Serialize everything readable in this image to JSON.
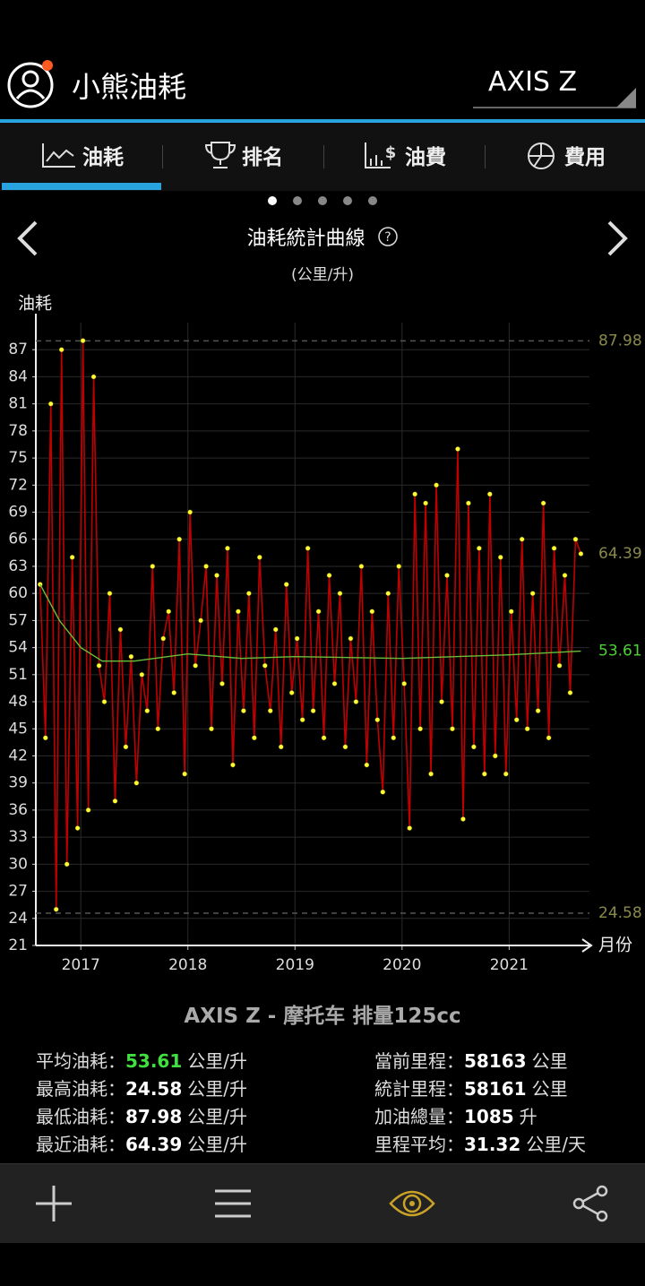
{
  "header": {
    "app_title": "小熊油耗",
    "vehicle": "AXIS Z"
  },
  "tabs": [
    "油耗",
    "排名",
    "油費",
    "費用"
  ],
  "chart_data": {
    "type": "line",
    "title": "油耗統計曲線",
    "subtitle": "(公里/升)",
    "y_label": "油耗",
    "x_label": "月份",
    "xlim": [
      2016.58,
      2021.75
    ],
    "xticks": [
      2017,
      2018,
      2019,
      2020,
      2021
    ],
    "ylim": [
      21,
      90
    ],
    "yticks": [
      21,
      24,
      27,
      30,
      33,
      36,
      39,
      42,
      45,
      48,
      51,
      54,
      57,
      60,
      63,
      66,
      69,
      72,
      75,
      78,
      81,
      84,
      87
    ],
    "grid": true,
    "series": [
      {
        "name": "油耗",
        "color": "#c00000",
        "marker_color": "#ffff33",
        "x": [
          2016.62,
          2016.67,
          2016.72,
          2016.77,
          2016.82,
          2016.87,
          2016.92,
          2016.97,
          2017.02,
          2017.07,
          2017.12,
          2017.17,
          2017.22,
          2017.27,
          2017.32,
          2017.37,
          2017.42,
          2017.47,
          2017.52,
          2017.57,
          2017.62,
          2017.67,
          2017.72,
          2017.77,
          2017.82,
          2017.87,
          2017.92,
          2017.97,
          2018.02,
          2018.07,
          2018.12,
          2018.17,
          2018.22,
          2018.27,
          2018.32,
          2018.37,
          2018.42,
          2018.47,
          2018.52,
          2018.57,
          2018.62,
          2018.67,
          2018.72,
          2018.77,
          2018.82,
          2018.87,
          2018.92,
          2018.97,
          2019.02,
          2019.07,
          2019.12,
          2019.17,
          2019.22,
          2019.27,
          2019.32,
          2019.37,
          2019.42,
          2019.47,
          2019.52,
          2019.57,
          2019.62,
          2019.67,
          2019.72,
          2019.77,
          2019.82,
          2019.87,
          2019.92,
          2019.97,
          2020.02,
          2020.07,
          2020.12,
          2020.17,
          2020.22,
          2020.27,
          2020.32,
          2020.37,
          2020.42,
          2020.47,
          2020.52,
          2020.57,
          2020.62,
          2020.67,
          2020.72,
          2020.77,
          2020.82,
          2020.87,
          2020.92,
          2020.97,
          2021.02,
          2021.07,
          2021.12,
          2021.17,
          2021.22,
          2021.27,
          2021.32,
          2021.37,
          2021.42,
          2021.47,
          2021.52,
          2021.57,
          2021.62,
          2021.67
        ],
        "values": [
          61,
          44,
          81,
          25,
          87,
          30,
          64,
          34,
          88,
          36,
          84,
          52,
          48,
          60,
          37,
          56,
          43,
          53,
          39,
          51,
          47,
          63,
          45,
          55,
          58,
          49,
          66,
          40,
          69,
          52,
          57,
          63,
          45,
          62,
          50,
          65,
          41,
          58,
          47,
          60,
          44,
          64,
          52,
          47,
          56,
          43,
          61,
          49,
          55,
          46,
          65,
          47,
          58,
          44,
          62,
          50,
          60,
          43,
          55,
          48,
          63,
          41,
          58,
          46,
          38,
          60,
          44,
          63,
          50,
          34,
          71,
          45,
          70,
          40,
          72,
          48,
          62,
          45,
          76,
          35,
          70,
          43,
          65,
          40,
          71,
          42,
          64,
          40,
          58,
          46,
          66,
          45,
          60,
          47,
          70,
          44,
          65,
          52,
          62,
          49,
          66,
          64.39
        ]
      },
      {
        "name": "平均",
        "color": "#6abf3a",
        "x": [
          2016.62,
          2016.8,
          2017.0,
          2017.2,
          2017.5,
          2018.0,
          2018.5,
          2019.0,
          2020.0,
          2021.0,
          2021.67
        ],
        "values": [
          61,
          57,
          54,
          52.5,
          52.5,
          53.3,
          52.8,
          53,
          52.8,
          53.2,
          53.61
        ]
      }
    ],
    "reference_lines": [
      {
        "value": 87.98,
        "color": "#8a8a4a",
        "dashed": true
      },
      {
        "value": 64.39,
        "color": "#8a8a4a",
        "dashed": false
      },
      {
        "value": 53.61,
        "color": "#4cd137",
        "dashed": false
      },
      {
        "value": 24.58,
        "color": "#8a8a4a",
        "dashed": true
      }
    ]
  },
  "vehicle_title": "AXIS Z - 摩托车 排量125cc",
  "stats": {
    "left": [
      {
        "label": "平均油耗：",
        "value": 53.61,
        "unit": "公里/升"
      },
      {
        "label": "最高油耗：",
        "value": 24.58,
        "unit": "公里/升"
      },
      {
        "label": "最低油耗：",
        "value": 87.98,
        "unit": "公里/升"
      },
      {
        "label": "最近油耗：",
        "value": 64.39,
        "unit": "公里/升"
      }
    ],
    "right": [
      {
        "label": "當前里程：",
        "value": 58163,
        "unit": "公里"
      },
      {
        "label": "統計里程：",
        "value": 58161,
        "unit": "公里"
      },
      {
        "label": "加油總量：",
        "value": 1085,
        "unit": "升"
      },
      {
        "label": "里程平均：",
        "value": 31.32,
        "unit": "公里/天"
      }
    ]
  }
}
